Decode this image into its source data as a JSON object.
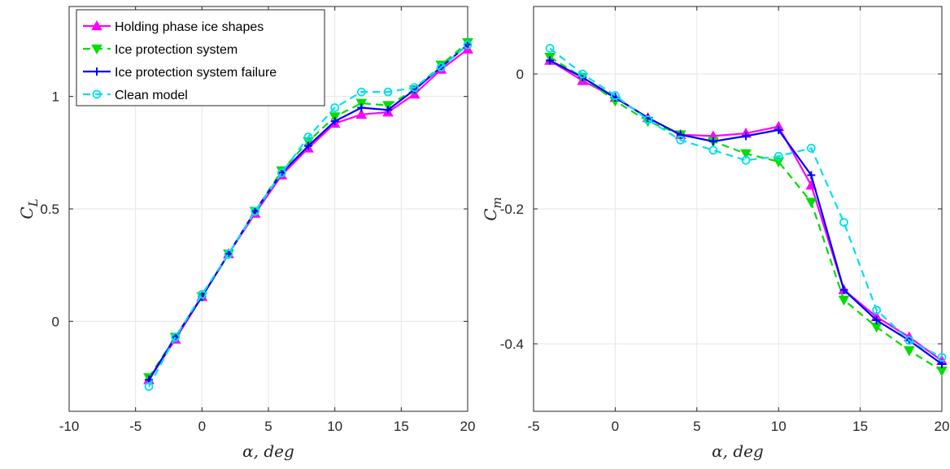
{
  "colors": {
    "holding": "#ff00ff",
    "ips": "#00dd00",
    "ips_failure": "#0000ff",
    "clean": "#00e0ee",
    "grid": "#e6e6e6",
    "axis": "#262626"
  },
  "chart_data": [
    {
      "type": "line",
      "xlabel": "α, deg",
      "ylabel": "C_L",
      "xlim": [
        -10,
        20
      ],
      "ylim": [
        -0.4,
        1.4
      ],
      "xticks": [
        -10,
        -5,
        0,
        5,
        10,
        15,
        20
      ],
      "xticklabels": [
        "-10",
        "-5",
        "0",
        "5",
        "10",
        "15",
        "20"
      ],
      "yticks": [
        0,
        0.5,
        1
      ],
      "yticklabels": [
        "0",
        "0.5",
        "1"
      ],
      "grid": true,
      "legend": "top-left",
      "x": [
        -4,
        -2,
        0,
        2,
        4,
        6,
        8,
        10,
        12,
        14,
        16,
        18,
        20
      ],
      "series": [
        {
          "name": "Holding phase ice shapes",
          "marker": "triangle-up",
          "dash": "solid",
          "color_key": "holding",
          "values": [
            -0.26,
            -0.08,
            0.11,
            0.3,
            0.48,
            0.65,
            0.77,
            0.88,
            0.92,
            0.93,
            1.01,
            1.12,
            1.21
          ]
        },
        {
          "name": "Ice protection system",
          "marker": "triangle-down",
          "dash": "dashed",
          "color_key": "ips",
          "values": [
            -0.25,
            -0.07,
            0.11,
            0.3,
            0.49,
            0.67,
            0.8,
            0.91,
            0.97,
            0.96,
            1.03,
            1.14,
            1.24
          ]
        },
        {
          "name": "Ice protection system failure",
          "marker": "plus",
          "dash": "solid",
          "color_key": "ips_failure",
          "values": [
            -0.26,
            -0.07,
            0.11,
            0.3,
            0.49,
            0.66,
            0.78,
            0.89,
            0.95,
            0.94,
            1.03,
            1.13,
            1.23
          ]
        },
        {
          "name": "Clean model",
          "marker": "circle",
          "dash": "dashed",
          "color_key": "clean",
          "values": [
            -0.29,
            -0.07,
            0.12,
            0.3,
            0.49,
            0.66,
            0.82,
            0.95,
            1.02,
            1.02,
            1.04,
            1.13,
            1.23
          ]
        }
      ]
    },
    {
      "type": "line",
      "xlabel": "α, deg",
      "ylabel": "C_m",
      "xlim": [
        -5,
        20
      ],
      "ylim": [
        -0.5,
        0.1
      ],
      "xticks": [
        -5,
        0,
        5,
        10,
        15,
        20
      ],
      "xticklabels": [
        "-5",
        "0",
        "5",
        "10",
        "15",
        "20"
      ],
      "yticks": [
        -0.4,
        -0.2,
        0
      ],
      "yticklabels": [
        "-0.4",
        "-0.2",
        "0"
      ],
      "grid": true,
      "x": [
        -4,
        -2,
        0,
        2,
        4,
        6,
        8,
        10,
        12,
        14,
        16,
        18,
        20
      ],
      "series": [
        {
          "name": "Holding phase ice shapes",
          "marker": "triangle-up",
          "dash": "solid",
          "color_key": "holding",
          "values": [
            0.02,
            -0.01,
            -0.035,
            -0.065,
            -0.09,
            -0.092,
            -0.088,
            -0.078,
            -0.165,
            -0.32,
            -0.36,
            -0.39,
            -0.425
          ]
        },
        {
          "name": "Ice protection system",
          "marker": "triangle-down",
          "dash": "dashed",
          "color_key": "ips",
          "values": [
            0.025,
            -0.005,
            -0.04,
            -0.07,
            -0.09,
            -0.1,
            -0.118,
            -0.13,
            -0.19,
            -0.335,
            -0.375,
            -0.41,
            -0.44
          ]
        },
        {
          "name": "Ice protection system failure",
          "marker": "plus",
          "dash": "solid",
          "color_key": "ips_failure",
          "values": [
            0.02,
            -0.005,
            -0.035,
            -0.065,
            -0.09,
            -0.1,
            -0.092,
            -0.083,
            -0.15,
            -0.32,
            -0.365,
            -0.395,
            -0.43
          ]
        },
        {
          "name": "Clean model",
          "marker": "circle",
          "dash": "dashed",
          "color_key": "clean",
          "values": [
            0.038,
            0.0,
            -0.032,
            -0.068,
            -0.098,
            -0.113,
            -0.128,
            -0.122,
            -0.11,
            -0.22,
            -0.35,
            -0.395,
            -0.42
          ]
        }
      ]
    }
  ]
}
